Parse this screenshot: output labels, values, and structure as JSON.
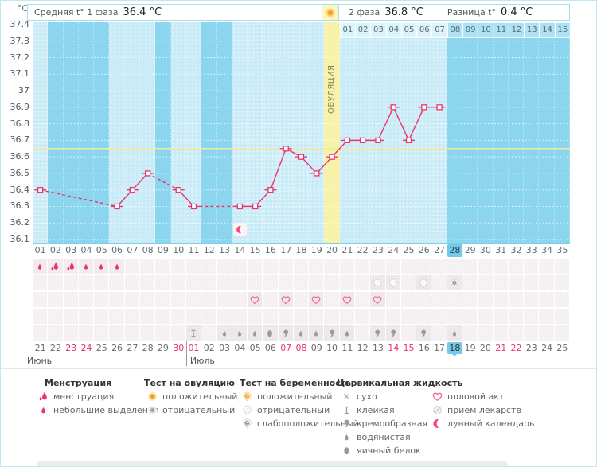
{
  "header": {
    "unit": "°C",
    "phase1_label": "Средняя t° 1 фаза",
    "phase1_value": "36.4 °C",
    "phase2_label": "2 фаза",
    "phase2_value": "36.8 °C",
    "diff_label": "Разница t°",
    "diff_value": "0.4 °C"
  },
  "chart_data": {
    "type": "line",
    "ylabel_unit": "°C",
    "ylim": [
      36.1,
      37.4
    ],
    "y_ticks": [
      "37.4",
      "37.3",
      "37.2",
      "37.1",
      "37",
      "36.9",
      "36.8",
      "36.7",
      "36.6",
      "36.5",
      "36.4",
      "36.3",
      "36.2",
      "36.1"
    ],
    "grid": "dotted-white",
    "coverline_temp": 36.65,
    "ovulation_day": 20,
    "ovulation_label": "ОВУЛЯЦИЯ",
    "cycle_length_days": 35,
    "current_cycle_day": 28,
    "points": [
      {
        "day": 1,
        "temp": 36.4
      },
      {
        "day": 6,
        "temp": 36.3
      },
      {
        "day": 7,
        "temp": 36.4
      },
      {
        "day": 8,
        "temp": 36.5
      },
      {
        "day": 10,
        "temp": 36.4
      },
      {
        "day": 11,
        "temp": 36.3
      },
      {
        "day": 14,
        "temp": 36.3
      },
      {
        "day": 15,
        "temp": 36.3
      },
      {
        "day": 16,
        "temp": 36.4
      },
      {
        "day": 17,
        "temp": 36.65
      },
      {
        "day": 18,
        "temp": 36.6
      },
      {
        "day": 19,
        "temp": 36.5
      },
      {
        "day": 20,
        "temp": 36.6
      },
      {
        "day": 21,
        "temp": 36.7
      },
      {
        "day": 22,
        "temp": 36.7
      },
      {
        "day": 23,
        "temp": 36.7
      },
      {
        "day": 24,
        "temp": 36.9
      },
      {
        "day": 25,
        "temp": 36.7
      },
      {
        "day": 26,
        "temp": 36.9
      },
      {
        "day": 27,
        "temp": 36.9
      }
    ],
    "dpo_labels": [
      "01",
      "02",
      "03",
      "04",
      "05",
      "06",
      "07",
      "08",
      "09",
      "10",
      "11",
      "12",
      "13",
      "14",
      "15"
    ],
    "cycle_day_labels": [
      "01",
      "02",
      "03",
      "04",
      "05",
      "06",
      "07",
      "08",
      "09",
      "10",
      "11",
      "12",
      "13",
      "14",
      "15",
      "16",
      "17",
      "18",
      "19",
      "20",
      "21",
      "22",
      "23",
      "24",
      "25",
      "26",
      "27",
      "28",
      "29",
      "30",
      "31",
      "32",
      "33",
      "34",
      "35"
    ]
  },
  "marks": {
    "lunar_day": 14,
    "rows": [
      {
        "name": "menstruation",
        "cells": [
          {
            "day": 1,
            "icon": "flow-light"
          },
          {
            "day": 2,
            "icon": "flow-heavy"
          },
          {
            "day": 3,
            "icon": "flow-heavy"
          },
          {
            "day": 4,
            "icon": "flow-light"
          },
          {
            "day": 5,
            "icon": "flow-light"
          },
          {
            "day": 6,
            "icon": "flow-light"
          }
        ]
      },
      {
        "name": "pregnancy-test",
        "cells": [
          {
            "day": 23,
            "icon": "test-negative"
          },
          {
            "day": 24,
            "icon": "test-negative"
          },
          {
            "day": 26,
            "icon": "test-negative"
          },
          {
            "day": 28,
            "icon": "test-weak"
          }
        ]
      },
      {
        "name": "intercourse",
        "cells": [
          {
            "day": 15,
            "icon": "heart"
          },
          {
            "day": 17,
            "icon": "heart"
          },
          {
            "day": 19,
            "icon": "heart"
          },
          {
            "day": 21,
            "icon": "heart"
          },
          {
            "day": 23,
            "icon": "heart"
          }
        ]
      },
      {
        "name": "medication",
        "cells": []
      },
      {
        "name": "cervical-fluid",
        "cells": [
          {
            "day": 11,
            "icon": "sticky"
          },
          {
            "day": 13,
            "icon": "watery"
          },
          {
            "day": 14,
            "icon": "watery"
          },
          {
            "day": 15,
            "icon": "watery"
          },
          {
            "day": 16,
            "icon": "eggwhite"
          },
          {
            "day": 17,
            "icon": "creamy"
          },
          {
            "day": 18,
            "icon": "watery"
          },
          {
            "day": 19,
            "icon": "watery"
          },
          {
            "day": 20,
            "icon": "creamy"
          },
          {
            "day": 21,
            "icon": "watery"
          },
          {
            "day": 23,
            "icon": "creamy"
          },
          {
            "day": 24,
            "icon": "creamy"
          },
          {
            "day": 26,
            "icon": "creamy"
          },
          {
            "day": 28,
            "icon": "watery"
          }
        ]
      }
    ]
  },
  "calendar": {
    "months": [
      {
        "name": "Июнь",
        "days": [
          {
            "label": "21"
          },
          {
            "label": "22"
          },
          {
            "label": "23",
            "red": true
          },
          {
            "label": "24",
            "red": true
          },
          {
            "label": "25"
          },
          {
            "label": "26"
          },
          {
            "label": "27"
          },
          {
            "label": "28"
          },
          {
            "label": "29"
          },
          {
            "label": "30",
            "red": true
          }
        ]
      },
      {
        "name": "Июль",
        "days": [
          {
            "label": "01",
            "red": true
          },
          {
            "label": "02"
          },
          {
            "label": "03"
          },
          {
            "label": "04"
          },
          {
            "label": "05"
          },
          {
            "label": "06"
          },
          {
            "label": "07",
            "red": true
          },
          {
            "label": "08",
            "red": true
          },
          {
            "label": "09"
          },
          {
            "label": "10"
          },
          {
            "label": "11"
          },
          {
            "label": "12"
          },
          {
            "label": "13"
          },
          {
            "label": "14",
            "red": true
          },
          {
            "label": "15",
            "red": true
          },
          {
            "label": "16"
          },
          {
            "label": "17"
          },
          {
            "label": "18",
            "current": true
          },
          {
            "label": "19"
          },
          {
            "label": "20"
          },
          {
            "label": "21",
            "red": true
          },
          {
            "label": "22",
            "red": true
          },
          {
            "label": "23"
          },
          {
            "label": "24"
          },
          {
            "label": "25"
          }
        ]
      }
    ]
  },
  "legend": {
    "sections": [
      {
        "title": "Менструация",
        "items": [
          {
            "icon": "flow-heavy",
            "label": "менструация"
          },
          {
            "icon": "flow-light",
            "label": "небольшие выделения"
          }
        ]
      },
      {
        "title": "Тест на овуляцию",
        "items": [
          {
            "icon": "ovu-positive",
            "label": "положительный"
          },
          {
            "icon": "ovu-negative",
            "label": "отрицательный"
          }
        ]
      },
      {
        "title": "Тест на беременность",
        "items": [
          {
            "icon": "test-positive",
            "label": "положительный"
          },
          {
            "icon": "test-negative",
            "label": "отрицательный"
          },
          {
            "icon": "test-weak",
            "label": "слабоположительный"
          }
        ]
      },
      {
        "title": "Цервикальная жидкость",
        "items": [
          {
            "icon": "dry",
            "label": "сухо"
          },
          {
            "icon": "sticky",
            "label": "клейкая"
          },
          {
            "icon": "creamy",
            "label": "кремообразная"
          },
          {
            "icon": "watery",
            "label": "водянистая"
          },
          {
            "icon": "eggwhite",
            "label": "яичный белок"
          }
        ]
      },
      {
        "title": "",
        "items": [
          {
            "icon": "heart",
            "label": "половой акт"
          },
          {
            "icon": "pill",
            "label": "прием лекарств"
          },
          {
            "icon": "moon",
            "label": "лунный календарь"
          }
        ]
      }
    ]
  },
  "colors": {
    "line": "#e8336d",
    "plot_bg": "#8cd5ee",
    "measured_column": "#c9ebf7",
    "ovulation_column": "#f7f2a9",
    "coverline": "#f0eb9e",
    "highlight_day": "#72c9e9",
    "holiday_text": "#e8336d",
    "icon_gray": "#9a9a9a",
    "heart": "#f2689a"
  }
}
